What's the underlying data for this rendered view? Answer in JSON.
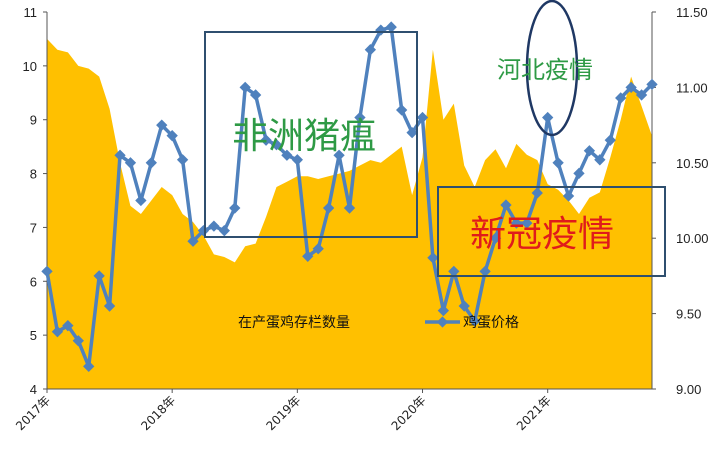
{
  "chart_data": {
    "type": "area+line",
    "title": "",
    "xlabel": "",
    "ylabel_left": "",
    "ylabel_right": "",
    "x_ticks": [
      "2017年",
      "2018年",
      "2019年",
      "2020年",
      "2021年"
    ],
    "y_left_ticks": [
      "4",
      "5",
      "6",
      "7",
      "8",
      "9",
      "10",
      "11"
    ],
    "y_left_range": [
      4,
      11
    ],
    "y_right_ticks": [
      "9.00",
      "9.50",
      "10.00",
      "10.50",
      "11.00",
      "11.50"
    ],
    "y_right_range": [
      9.0,
      11.5
    ],
    "grid": false,
    "legend_position": "bottom-center",
    "series": [
      {
        "name": "在产蛋鸡存栏数量",
        "kind": "area",
        "axis": "left",
        "color": "#FFC000",
        "values": [
          10.5,
          10.3,
          10.25,
          10.0,
          9.95,
          9.8,
          9.2,
          8.2,
          7.4,
          7.25,
          7.5,
          7.75,
          7.6,
          7.25,
          7.1,
          6.85,
          6.5,
          6.45,
          6.35,
          6.65,
          6.7,
          7.2,
          7.75,
          7.85,
          7.95,
          7.95,
          7.9,
          7.95,
          8.0,
          8.05,
          8.15,
          8.25,
          8.2,
          8.35,
          8.5,
          7.6,
          8.3,
          10.3,
          9.0,
          9.3,
          8.15,
          7.75,
          8.25,
          8.45,
          8.1,
          8.55,
          8.35,
          8.25,
          7.8,
          7.7,
          7.5,
          7.25,
          7.55,
          7.65,
          8.3,
          9.0,
          9.8,
          9.25,
          8.7
        ]
      },
      {
        "name": "鸡蛋价格",
        "kind": "line",
        "axis": "right",
        "color": "#4F81BD",
        "values": [
          9.78,
          9.38,
          9.42,
          9.32,
          9.15,
          9.75,
          9.55,
          10.55,
          10.5,
          10.25,
          10.5,
          10.75,
          10.68,
          10.52,
          9.98,
          10.05,
          10.08,
          10.05,
          10.2,
          11.0,
          10.95,
          10.65,
          10.62,
          10.55,
          10.52,
          9.88,
          9.93,
          10.2,
          10.55,
          10.2,
          10.8,
          11.25,
          11.38,
          11.4,
          10.85,
          10.7,
          10.8,
          9.87,
          9.52,
          9.78,
          9.55,
          9.45,
          9.78,
          10.0,
          10.22,
          10.1,
          10.1,
          10.3,
          10.8,
          10.5,
          10.28,
          10.43,
          10.58,
          10.52,
          10.65,
          10.93,
          11.0,
          10.95,
          11.02
        ]
      }
    ],
    "annotations": [
      {
        "text": "非洲猪瘟",
        "color": "#2E9A45",
        "box_color": "#2F4F6F"
      },
      {
        "text": "河北疫情",
        "color": "#2E9A45",
        "box_color": "#1F3864",
        "shape": "ellipse"
      },
      {
        "text": "新冠疫情",
        "color": "#E01B1B",
        "box_color": "#2F4F6F"
      }
    ]
  }
}
